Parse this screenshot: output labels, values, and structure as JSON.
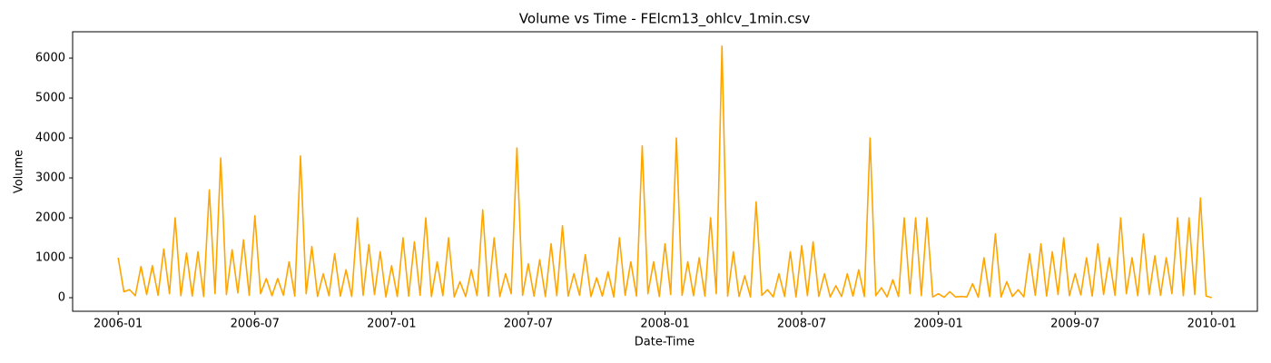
{
  "chart_data": {
    "type": "line",
    "title": "Volume vs Time - FElcm13_ohlcv_1min.csv",
    "xlabel": "Date-Time",
    "ylabel": "Volume",
    "color": "#ffa500",
    "x": [
      "2006-01",
      "2006-01",
      "2006-01",
      "2006-01",
      "2006-02",
      "2006-02",
      "2006-02",
      "2006-02",
      "2006-03",
      "2006-03",
      "2006-03",
      "2006-03",
      "2006-04",
      "2006-04",
      "2006-04",
      "2006-04",
      "2006-05",
      "2006-05",
      "2006-05",
      "2006-05",
      "2006-06",
      "2006-06",
      "2006-06",
      "2006-06",
      "2006-07",
      "2006-07",
      "2006-07",
      "2006-07",
      "2006-08",
      "2006-08",
      "2006-08",
      "2006-08",
      "2006-09",
      "2006-09",
      "2006-09",
      "2006-09",
      "2006-10",
      "2006-10",
      "2006-10",
      "2006-10",
      "2006-11",
      "2006-11",
      "2006-11",
      "2006-11",
      "2006-12",
      "2006-12",
      "2006-12",
      "2006-12",
      "2007-01",
      "2007-01",
      "2007-01",
      "2007-01",
      "2007-02",
      "2007-02",
      "2007-02",
      "2007-02",
      "2007-03",
      "2007-03",
      "2007-03",
      "2007-03",
      "2007-04",
      "2007-04",
      "2007-04",
      "2007-04",
      "2007-05",
      "2007-05",
      "2007-05",
      "2007-05",
      "2007-06",
      "2007-06",
      "2007-06",
      "2007-06",
      "2007-07",
      "2007-07",
      "2007-07",
      "2007-07",
      "2007-08",
      "2007-08",
      "2007-08",
      "2007-08",
      "2007-09",
      "2007-09",
      "2007-09",
      "2007-09",
      "2007-10",
      "2007-10",
      "2007-10",
      "2007-10",
      "2007-11",
      "2007-11",
      "2007-11",
      "2007-11",
      "2007-12",
      "2007-12",
      "2007-12",
      "2007-12",
      "2008-01",
      "2008-01",
      "2008-01",
      "2008-01",
      "2008-02",
      "2008-02",
      "2008-02",
      "2008-02",
      "2008-03",
      "2008-03",
      "2008-03",
      "2008-03",
      "2008-04",
      "2008-04",
      "2008-04",
      "2008-04",
      "2008-05",
      "2008-05",
      "2008-05",
      "2008-05",
      "2008-06",
      "2008-06",
      "2008-06",
      "2008-06",
      "2008-07",
      "2008-07",
      "2008-07",
      "2008-07",
      "2008-08",
      "2008-08",
      "2008-08",
      "2008-08",
      "2008-09",
      "2008-09",
      "2008-09",
      "2008-09",
      "2008-10",
      "2008-10",
      "2008-10",
      "2008-10",
      "2008-11",
      "2008-11",
      "2008-11",
      "2008-11",
      "2008-12",
      "2008-12",
      "2008-12",
      "2008-12",
      "2009-01",
      "2009-01",
      "2009-01",
      "2009-01",
      "2009-02",
      "2009-02",
      "2009-02",
      "2009-02",
      "2009-03",
      "2009-03",
      "2009-03",
      "2009-03",
      "2009-04",
      "2009-04",
      "2009-04",
      "2009-04",
      "2009-05",
      "2009-05",
      "2009-05",
      "2009-05",
      "2009-06",
      "2009-06",
      "2009-06",
      "2009-06",
      "2009-07",
      "2009-07",
      "2009-07",
      "2009-07",
      "2009-08",
      "2009-08",
      "2009-08",
      "2009-08",
      "2009-09",
      "2009-09",
      "2009-09",
      "2009-09",
      "2009-10",
      "2009-10",
      "2009-10",
      "2009-10",
      "2009-11",
      "2009-11",
      "2009-11",
      "2009-11",
      "2009-12",
      "2009-12",
      "2009-12",
      "2009-12",
      "2010-01"
    ],
    "values": [
      1000,
      150,
      200,
      50,
      780,
      80,
      800,
      60,
      1220,
      100,
      2000,
      50,
      1120,
      40,
      1150,
      30,
      2700,
      100,
      3500,
      80,
      1200,
      120,
      1450,
      60,
      2050,
      100,
      480,
      50,
      480,
      60,
      900,
      40,
      3550,
      100,
      1280,
      30,
      600,
      50,
      1100,
      40,
      700,
      30,
      2000,
      60,
      1330,
      80,
      1150,
      20,
      800,
      30,
      1500,
      40,
      1400,
      60,
      2000,
      30,
      900,
      50,
      1500,
      20,
      400,
      30,
      700,
      50,
      2200,
      40,
      1500,
      30,
      600,
      100,
      3750,
      60,
      850,
      40,
      950,
      30,
      1350,
      50,
      1800,
      40,
      600,
      60,
      1080,
      30,
      500,
      40,
      650,
      20,
      1500,
      60,
      900,
      40,
      3800,
      100,
      900,
      30,
      1350,
      80,
      4000,
      60,
      900,
      50,
      1000,
      40,
      2000,
      100,
      6300,
      40,
      1150,
      30,
      550,
      20,
      2400,
      60,
      200,
      20,
      600,
      30,
      1150,
      20,
      1300,
      50,
      1400,
      30,
      600,
      20,
      300,
      30,
      600,
      40,
      700,
      30,
      4000,
      50,
      250,
      20,
      450,
      30,
      2000,
      100,
      2000,
      50,
      2000,
      20,
      100,
      10,
      150,
      20,
      30,
      20,
      350,
      10,
      1000,
      30,
      1600,
      20,
      400,
      30,
      200,
      20,
      1100,
      60,
      1350,
      40,
      1150,
      80,
      1500,
      50,
      600,
      70,
      1000,
      40,
      1350,
      80,
      1000,
      60,
      2000,
      100,
      1000,
      50,
      1600,
      80,
      1050,
      60,
      1000,
      100,
      2000,
      50,
      2000,
      80,
      2500,
      40,
      0
    ],
    "xlim": [
      "2005-11",
      "2010-03"
    ],
    "xticks": [
      "2006-01",
      "2006-07",
      "2007-01",
      "2007-07",
      "2008-01",
      "2008-07",
      "2009-01",
      "2009-07",
      "2010-01"
    ],
    "ylim": [
      -340,
      6660
    ],
    "yticks": [
      0,
      1000,
      2000,
      3000,
      4000,
      5000,
      6000
    ]
  }
}
